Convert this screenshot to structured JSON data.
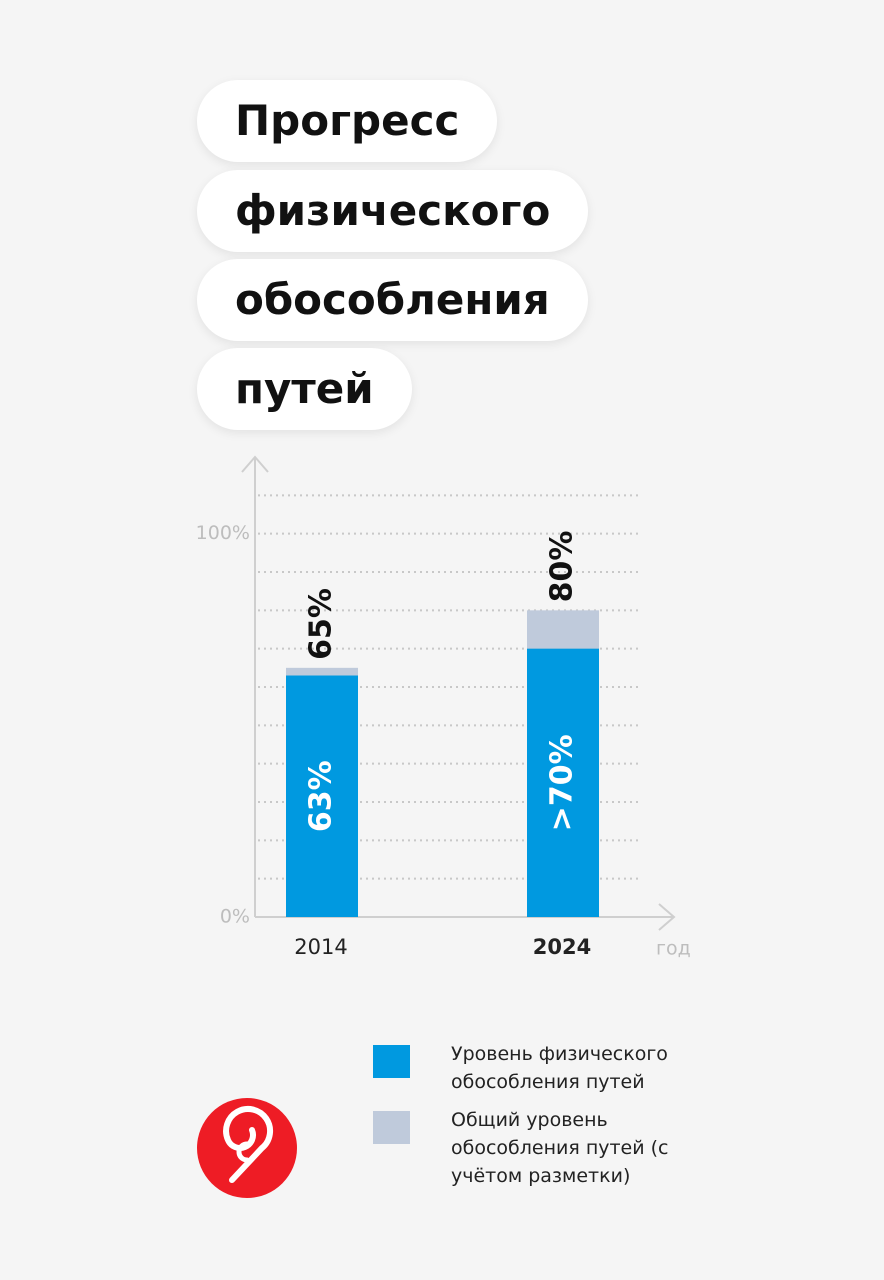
{
  "chart_data": {
    "type": "bar",
    "title_lines": [
      "Прогресс",
      "физического",
      "обособления",
      "путей"
    ],
    "categories": [
      "2014",
      "2024"
    ],
    "xlabel": "год",
    "series": [
      {
        "name": "Общий уровень обособления путей (с учётом разметки)",
        "color": "#bfcadb",
        "values": [
          65,
          80
        ],
        "value_labels": [
          "65%",
          "80%"
        ]
      },
      {
        "name": "Уровень физического обособления путей",
        "color": "#0099e0",
        "values": [
          63,
          70
        ],
        "value_labels": [
          "63%",
          ">70%"
        ]
      }
    ],
    "ylim": [
      0,
      120
    ],
    "yticks": [
      {
        "value": 0,
        "label": "0%"
      },
      {
        "value": 100,
        "label": "100%"
      }
    ],
    "gridlines": [
      10,
      20,
      30,
      40,
      50,
      60,
      70,
      80,
      90,
      100,
      110
    ]
  }
}
